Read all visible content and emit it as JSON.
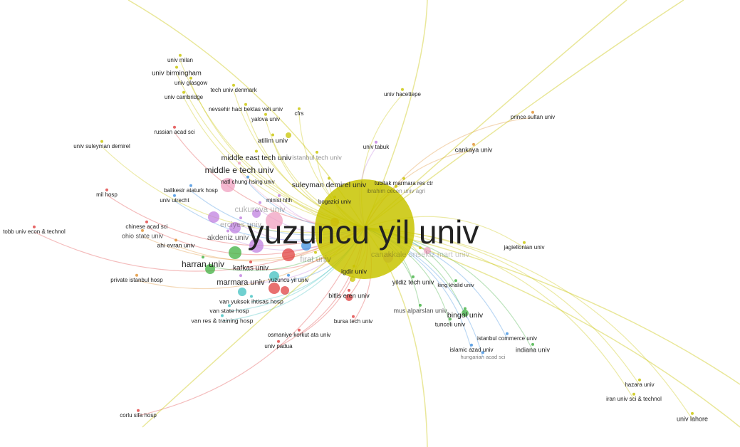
{
  "nodes": [
    {
      "label": "univ milan"
    },
    {
      "label": "univ birmingham"
    },
    {
      "label": "univ glasgow"
    },
    {
      "label": "tech univ denmark"
    },
    {
      "label": "univ cambridge"
    },
    {
      "label": "nevsehir haci bektas veli univ"
    },
    {
      "label": "cfrs"
    },
    {
      "label": "yalova univ"
    },
    {
      "label": "univ hacettepe"
    },
    {
      "label": "prince sultan univ"
    },
    {
      "label": "russian acad sci"
    },
    {
      "label": "univ suleyman demirel"
    },
    {
      "label": "atilim univ"
    },
    {
      "label": "univ tabuk"
    },
    {
      "label": "cankaya univ"
    },
    {
      "label": "middle east tech univ"
    },
    {
      "label": "istanbul tech univ"
    },
    {
      "label": "middle e tech univ"
    },
    {
      "label": "suleyman demirel univ"
    },
    {
      "label": "tubitak marmara res ctr"
    },
    {
      "label": "ibrahim cecen univ agri"
    },
    {
      "label": "natl chung hsing univ"
    },
    {
      "label": "balikesir ataturk hosp"
    },
    {
      "label": "mil hosp"
    },
    {
      "label": "univ utrecht"
    },
    {
      "label": "minist hlth"
    },
    {
      "label": "bogazici univ"
    },
    {
      "label": "cukurova univ"
    },
    {
      "label": "chinese acad sci"
    },
    {
      "label": "ohio state univ"
    },
    {
      "label": "tobb univ econ & technol"
    },
    {
      "label": "erciyes univ"
    },
    {
      "label": "akdeniz univ"
    },
    {
      "label": "ahi evran univ"
    },
    {
      "label": "jagiellonian univ"
    },
    {
      "label": "firat univ"
    },
    {
      "label": "canakkale onsekiz mart univ"
    },
    {
      "label": "harran univ"
    },
    {
      "label": "kafkas univ"
    },
    {
      "label": "igdir univ"
    },
    {
      "label": "private istanbul hosp"
    },
    {
      "label": "yuzuncu yil univ"
    },
    {
      "label": "marmara univ"
    },
    {
      "label": "yildiz tech univ"
    },
    {
      "label": "king khalid univ"
    },
    {
      "label": "bitlis eren univ"
    },
    {
      "label": "van yuksek ihtisas hosp"
    },
    {
      "label": "van state hosp"
    },
    {
      "label": "mus alparslan univ"
    },
    {
      "label": "bingol univ"
    },
    {
      "label": "van res & training hosp"
    },
    {
      "label": "bursa tech univ"
    },
    {
      "label": "tunceli univ"
    },
    {
      "label": "osmaniye korkut ata univ"
    },
    {
      "label": "istanbul commerce univ"
    },
    {
      "label": "islamic azad univ"
    },
    {
      "label": "indiana univ"
    },
    {
      "label": "hungarian acad sci"
    },
    {
      "label": "univ padua"
    },
    {
      "label": "hazara univ"
    },
    {
      "label": "iran univ sci & technol"
    },
    {
      "label": "corlu sifa hosp"
    },
    {
      "label": "univ lahore"
    },
    {
      "label": "yuzuncu yil univ"
    }
  ]
}
